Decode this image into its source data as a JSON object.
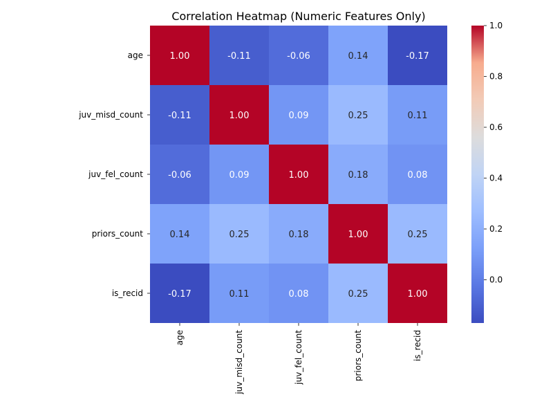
{
  "chart_data": {
    "type": "heatmap",
    "title": "Correlation Heatmap (Numeric Features Only)",
    "rows": [
      "age",
      "juv_misd_count",
      "juv_fel_count",
      "priors_count",
      "is_recid"
    ],
    "cols": [
      "age",
      "juv_misd_count",
      "juv_fel_count",
      "priors_count",
      "is_recid"
    ],
    "values": [
      [
        1.0,
        -0.11,
        -0.06,
        0.14,
        -0.17
      ],
      [
        -0.11,
        1.0,
        0.09,
        0.25,
        0.11
      ],
      [
        -0.06,
        0.09,
        1.0,
        0.18,
        0.08
      ],
      [
        0.14,
        0.25,
        0.18,
        1.0,
        0.25
      ],
      [
        -0.17,
        0.11,
        0.08,
        0.25,
        1.0
      ]
    ],
    "colormap": "coolwarm",
    "vmin": -0.17,
    "vmax": 1.0,
    "colorbar_ticks": [
      "0.0",
      "0.2",
      "0.4",
      "0.6",
      "0.8",
      "1.0"
    ],
    "colorbar_tick_values": [
      0.0,
      0.2,
      0.4,
      0.6,
      0.8,
      1.0
    ],
    "annotation_format": "2 decimals"
  }
}
